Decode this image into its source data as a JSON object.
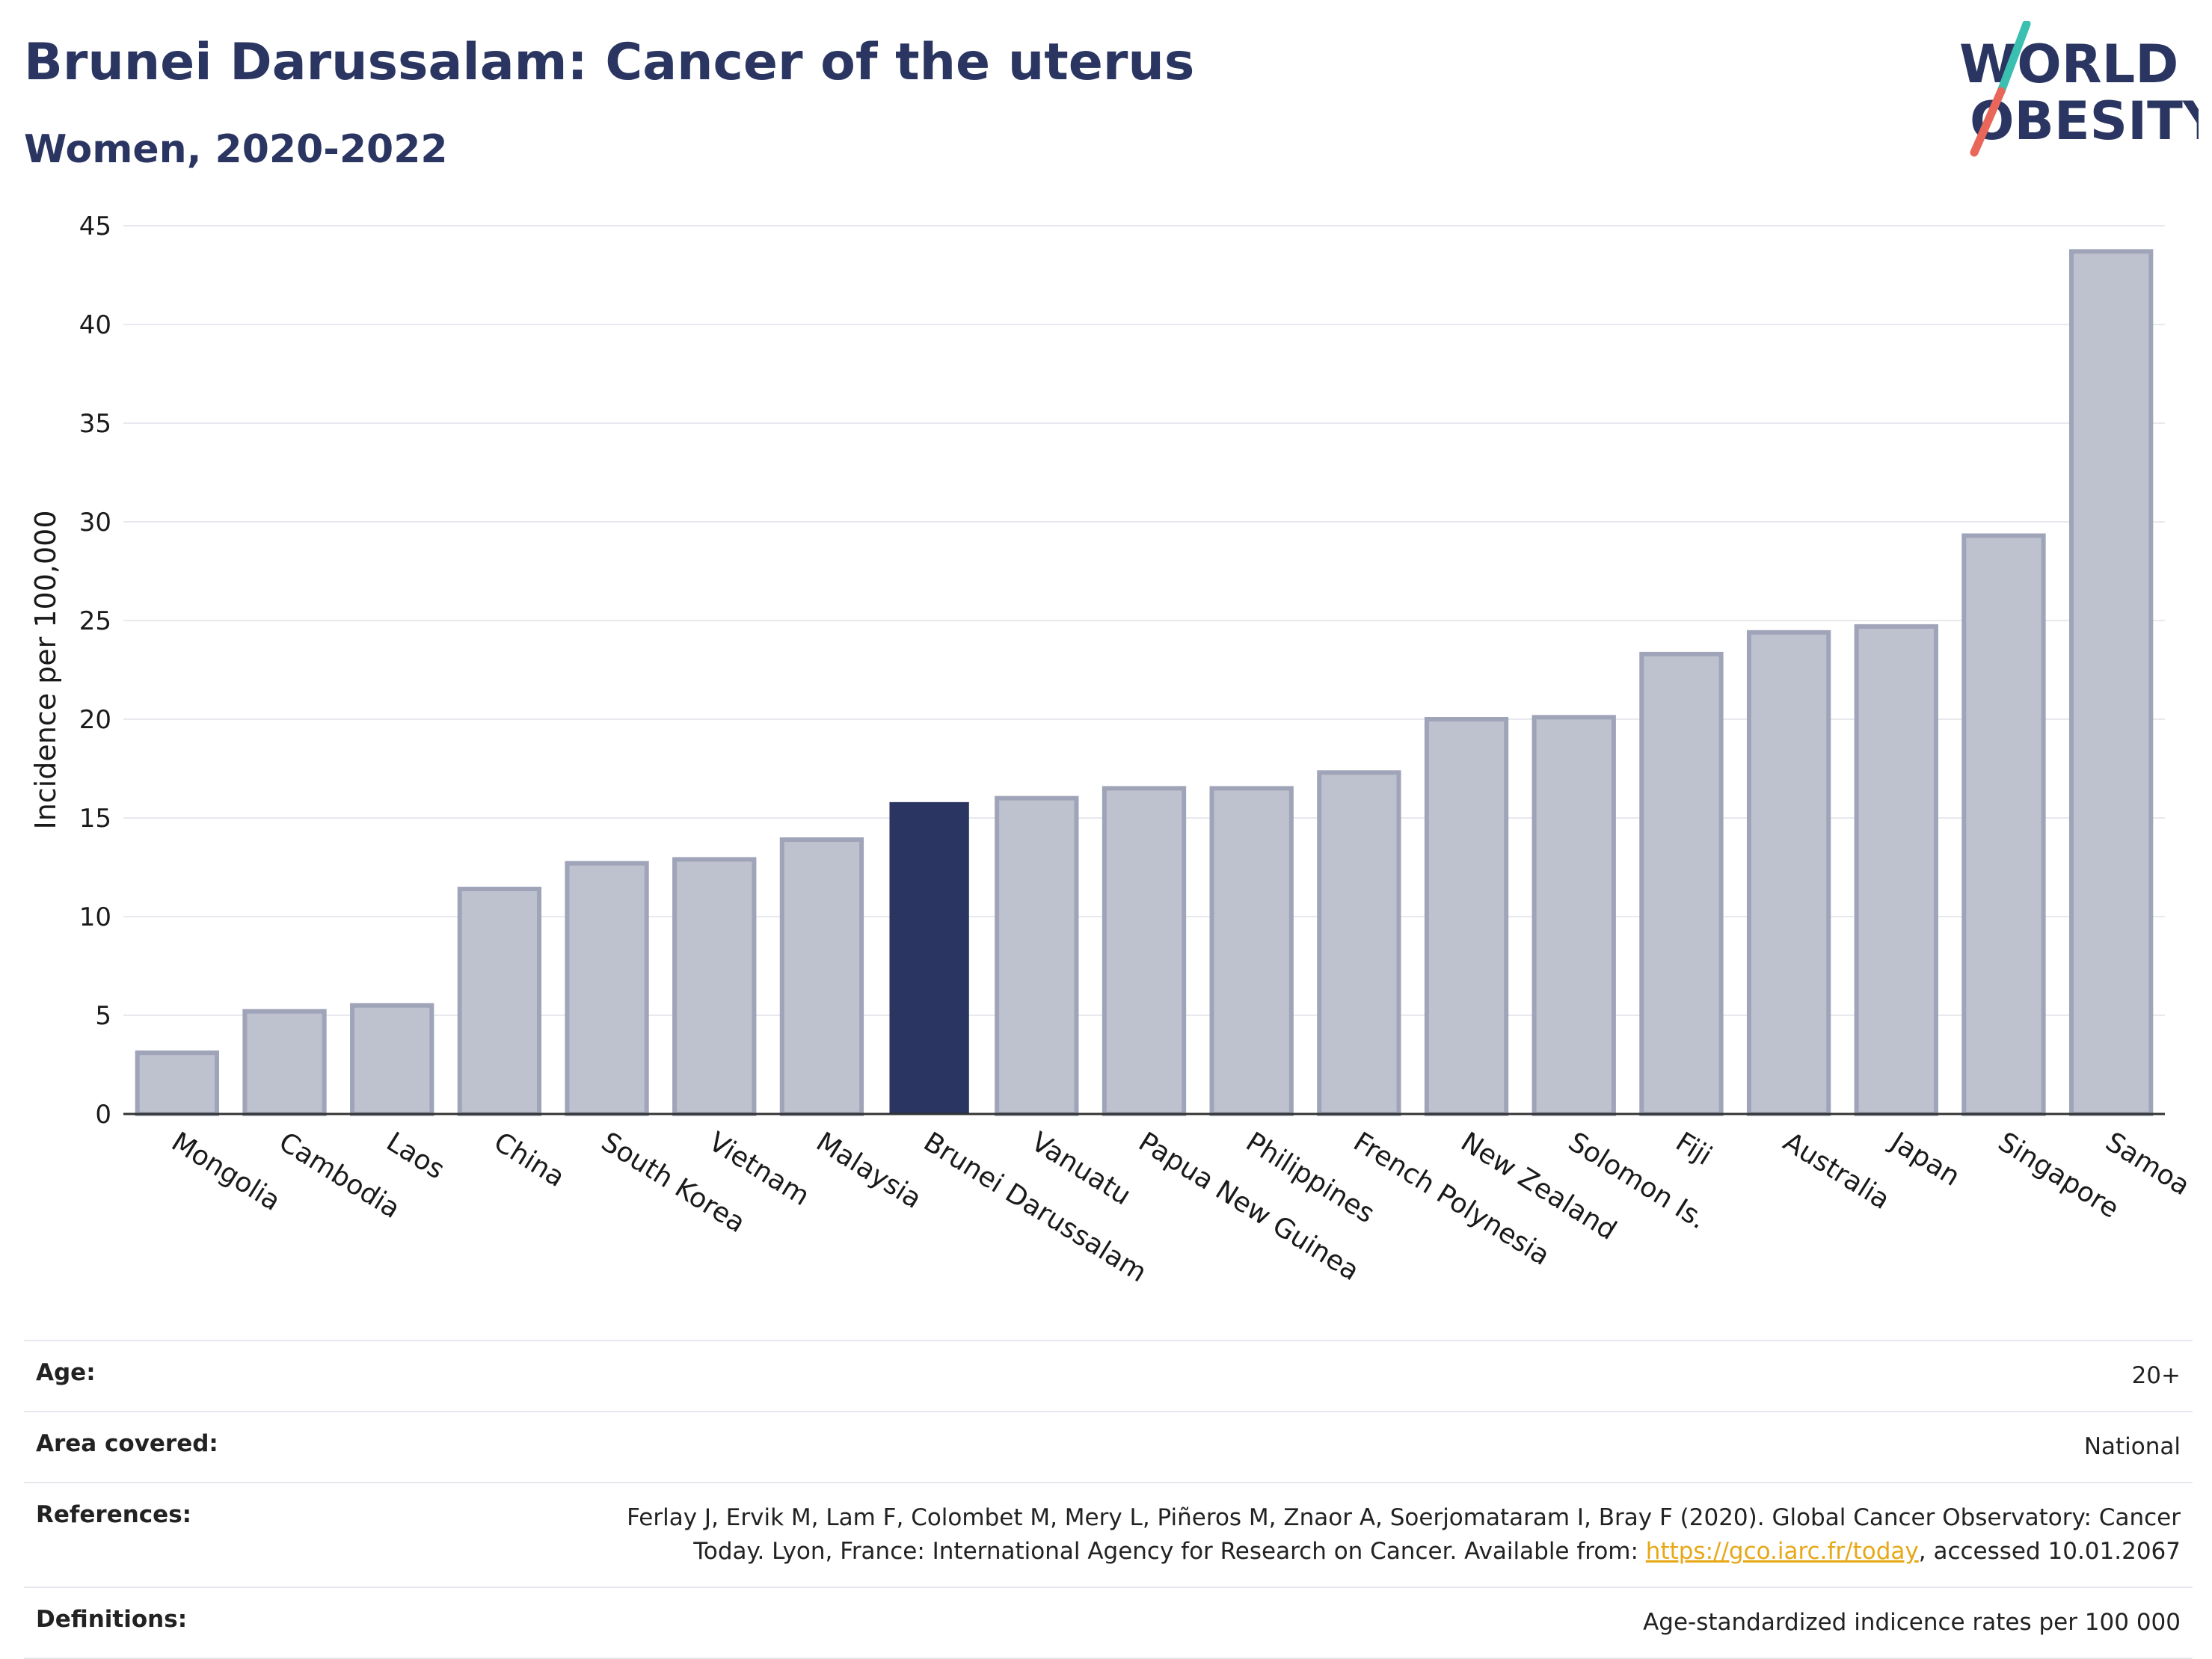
{
  "header": {
    "title": "Brunei Darussalam: Cancer of the uterus",
    "subtitle": "Women, 2020-2022"
  },
  "logo": {
    "line1": "WORLD",
    "line2": "OBESITY",
    "colors": {
      "text": "#2a3561",
      "slash_top": "#3bbfb0",
      "slash_bottom": "#e8665a"
    }
  },
  "chart_data": {
    "type": "bar",
    "categories": [
      "Mongolia",
      "Cambodia",
      "Laos",
      "China",
      "South Korea",
      "Vietnam",
      "Malaysia",
      "Brunei Darussalam",
      "Vanuatu",
      "Papua New Guinea",
      "Philippines",
      "French Polynesia",
      "New Zealand",
      "Solomon Is.",
      "Fiji",
      "Australia",
      "Japan",
      "Singapore",
      "Samoa"
    ],
    "values": [
      3.1,
      5.2,
      5.5,
      11.4,
      12.7,
      12.9,
      13.9,
      15.8,
      16.0,
      16.5,
      16.5,
      17.3,
      20.0,
      20.1,
      23.3,
      24.4,
      24.7,
      29.3,
      43.7
    ],
    "highlight": "Brunei Darussalam",
    "ylabel": "Incidence per 100,000",
    "ylim": [
      0,
      45
    ],
    "yticks": [
      0,
      5,
      10,
      15,
      20,
      25,
      30,
      35,
      40,
      45
    ],
    "grid": true,
    "colors": {
      "bar": "#bec2cf",
      "bar_edge": "#9fa4b8",
      "highlight": "#2a3561"
    }
  },
  "info": {
    "rows": [
      {
        "label": "Age:",
        "value": "20+"
      },
      {
        "label": "Area covered:",
        "value": "National"
      },
      {
        "label": "References:",
        "value_before": "Ferlay J, Ervik M, Lam F, Colombet M, Mery L, Piñeros M, Znaor A, Soerjomataram I, Bray F (2020). Global Cancer Observatory: Cancer Today. Lyon, France: International Agency for Research on Cancer. Available from: ",
        "link": "https://gco.iarc.fr/today",
        "value_after": ", accessed 10.01.2067"
      },
      {
        "label": "Definitions:",
        "value": "Age-standardized indicence rates per 100 000"
      }
    ]
  }
}
